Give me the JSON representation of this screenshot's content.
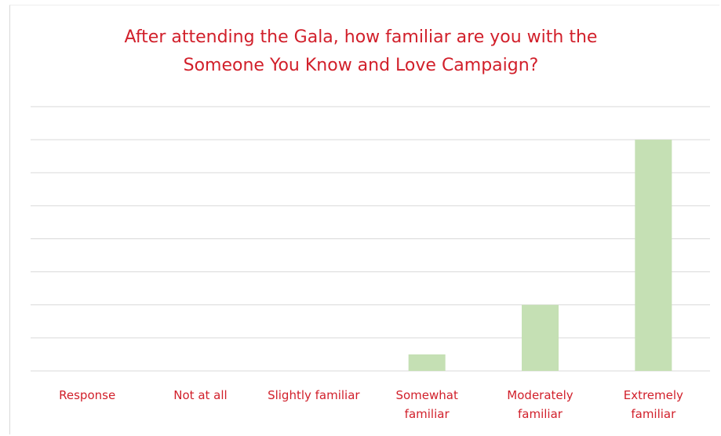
{
  "chart_data": {
    "type": "bar",
    "title": "After attending the Gala, how familiar are you with the Someone You Know and Love Campaign?",
    "categories": [
      "Response",
      "Not at all",
      "Slightly familiar",
      "Somewhat familiar",
      "Moderately familiar",
      "Extremely familiar"
    ],
    "values": [
      0,
      0,
      0,
      0.5,
      2,
      7
    ],
    "color": "#c5e0b4",
    "ylim": [
      0,
      8
    ],
    "yticks": [
      0,
      1,
      2,
      3,
      4,
      5,
      6,
      7,
      8
    ],
    "grid": true
  }
}
